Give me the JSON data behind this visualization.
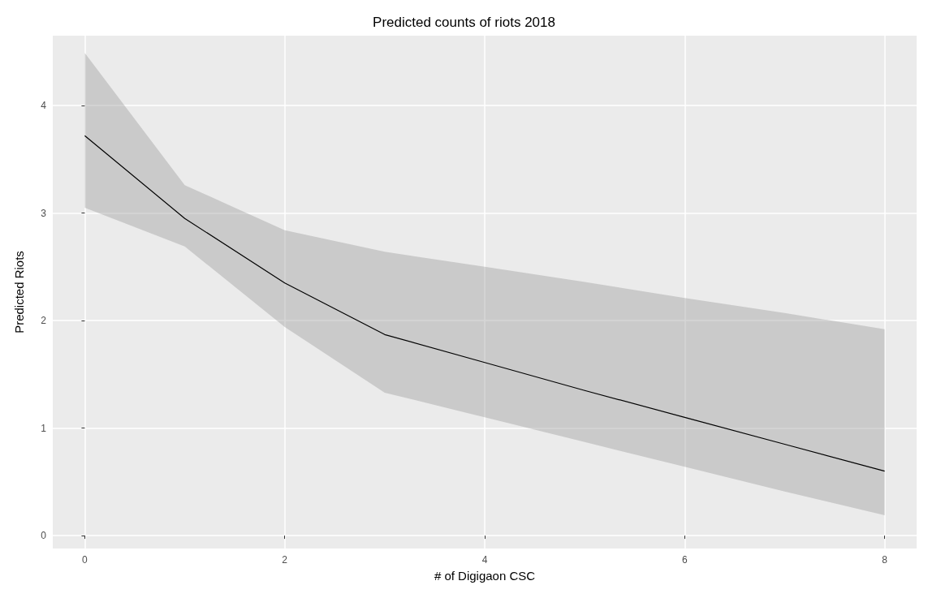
{
  "chart_data": {
    "type": "line",
    "title": "Predicted counts of riots 2018",
    "xlabel": "# of Digigaon CSC",
    "ylabel": "Predicted Riots",
    "x": [
      0,
      1,
      2,
      3,
      4,
      5,
      6,
      7,
      8
    ],
    "series": [
      {
        "color": "#000000",
        "values": [
          3.72,
          2.95,
          2.35,
          1.87,
          1.61,
          1.35,
          1.1,
          0.85,
          0.6
        ],
        "lower": [
          3.05,
          2.69,
          1.94,
          1.33,
          1.1,
          0.87,
          0.64,
          0.41,
          0.19
        ],
        "upper": [
          4.49,
          3.26,
          2.84,
          2.64,
          2.5,
          2.36,
          2.21,
          2.07,
          1.92
        ]
      }
    ],
    "xlim": [
      -0.32,
      8.32
    ],
    "xticks": [
      0,
      2,
      4,
      6,
      8
    ],
    "ylim": [
      -0.12,
      4.65
    ],
    "yticks": [
      0,
      1,
      2,
      3,
      4
    ],
    "grid": true,
    "marker": "none",
    "line_style": "solid"
  }
}
